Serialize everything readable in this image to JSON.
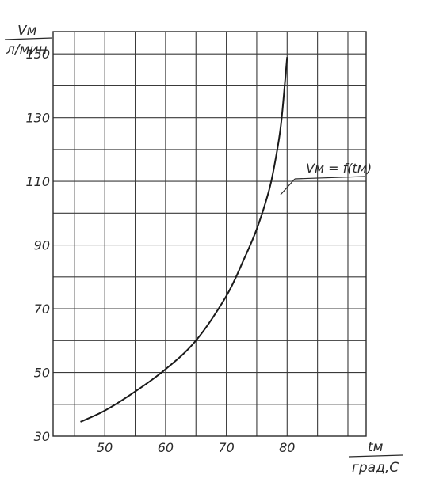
{
  "chart_data": {
    "type": "line",
    "title": "",
    "ylabel_top": "Vм",
    "ylabel_bottom": "л/мин",
    "xlabel_top": "tм",
    "xlabel_bottom": "град,С",
    "x_ticks": [
      "50",
      "60",
      "70",
      "80"
    ],
    "y_ticks": [
      "30",
      "50",
      "70",
      "90",
      "110",
      "130",
      "150"
    ],
    "xlim": [
      41.5,
      93
    ],
    "ylim": [
      30,
      157
    ],
    "grid": true,
    "series": [
      {
        "name": "Vм = f(tм)",
        "x": [
          46,
          50,
          55,
          60,
          65,
          70,
          73,
          75,
          77,
          78,
          79,
          80
        ],
        "y": [
          34.5,
          38,
          44,
          51,
          60,
          74,
          86,
          95,
          107,
          116,
          128,
          149
        ]
      }
    ],
    "annotation": "Vм = f(tм)"
  }
}
